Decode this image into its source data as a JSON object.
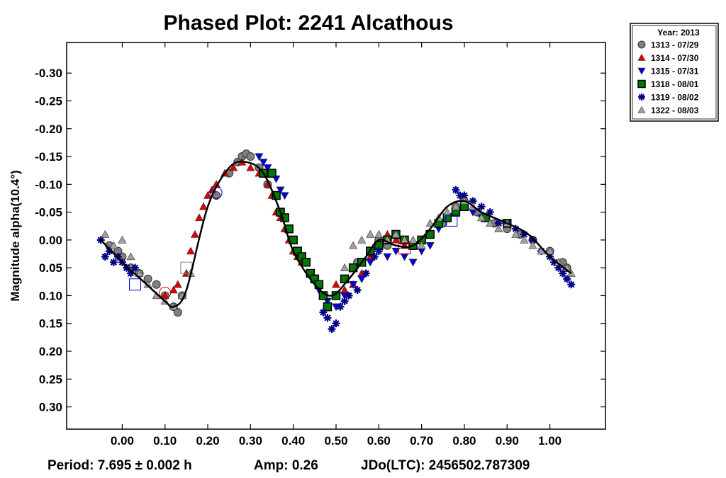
{
  "chart_data": {
    "type": "scatter",
    "title": "Phased Plot: 2241 Alcathous",
    "ylabel": "Magnitude alpha(10.4°)",
    "xlabel": "",
    "xlim": [
      -0.13,
      1.13
    ],
    "ylim": [
      0.34,
      -0.355
    ],
    "y_inverted": true,
    "x_ticks": [
      "0.00",
      "0.10",
      "0.20",
      "0.30",
      "0.40",
      "0.50",
      "0.60",
      "0.70",
      "0.80",
      "0.90",
      "1.00"
    ],
    "y_ticks": [
      "-0.30",
      "-0.25",
      "-0.20",
      "-0.15",
      "-0.10",
      "-0.05",
      "0.00",
      "0.05",
      "0.10",
      "0.15",
      "0.20",
      "0.25",
      "0.30"
    ],
    "legend_title": "Year: 2013",
    "legend_position": "outside-top-right",
    "footer": {
      "period": "Period: 7.695 ± 0.002 h",
      "amp": "Amp: 0.26",
      "jdo": "JDo(LTC): 2456502.787309"
    },
    "fit_curve": {
      "x": [
        -0.05,
        0.0,
        0.05,
        0.1,
        0.12,
        0.15,
        0.2,
        0.25,
        0.29,
        0.33,
        0.37,
        0.4,
        0.45,
        0.49,
        0.53,
        0.57,
        0.6,
        0.64,
        0.68,
        0.72,
        0.76,
        0.8,
        0.84,
        0.9,
        0.95,
        1.0,
        1.05
      ],
      "y": [
        0.0,
        0.04,
        0.075,
        0.11,
        0.12,
        0.09,
        -0.06,
        -0.13,
        -0.14,
        -0.12,
        -0.05,
        0.02,
        0.08,
        0.1,
        0.07,
        0.03,
        0.0,
        0.01,
        0.01,
        -0.02,
        -0.06,
        -0.07,
        -0.05,
        -0.03,
        -0.01,
        0.03,
        0.06
      ]
    },
    "series": [
      {
        "name": "1313 - 07/29",
        "marker": "circle",
        "color": "#808080",
        "x": [
          -0.03,
          -0.01,
          0.0,
          0.02,
          0.04,
          0.06,
          0.08,
          0.1,
          0.12,
          0.13,
          0.14,
          0.22,
          0.25,
          0.27,
          0.28,
          0.29,
          0.3,
          0.32,
          0.34,
          0.36,
          0.55,
          0.58,
          0.6,
          0.62,
          0.65,
          0.75,
          0.78,
          0.8,
          0.83,
          0.87,
          0.9,
          0.93,
          0.96,
          1.0,
          1.03,
          1.04
        ],
        "y": [
          0.01,
          0.02,
          0.03,
          0.05,
          0.06,
          0.07,
          0.08,
          0.1,
          0.12,
          0.13,
          0.1,
          -0.08,
          -0.12,
          -0.14,
          -0.15,
          -0.155,
          -0.15,
          -0.13,
          -0.1,
          -0.08,
          0.04,
          0.02,
          0.0,
          0.01,
          0.0,
          -0.03,
          -0.06,
          -0.07,
          -0.05,
          -0.03,
          -0.02,
          -0.01,
          0.0,
          0.02,
          0.04,
          0.05
        ]
      },
      {
        "name": "1314 - 07/30",
        "marker": "triangle-up",
        "color": "#dd0000",
        "x": [
          0.1,
          0.12,
          0.13,
          0.14,
          0.15,
          0.16,
          0.17,
          0.18,
          0.19,
          0.2,
          0.21,
          0.22,
          0.24,
          0.26,
          0.28,
          0.3,
          0.32,
          0.34,
          0.35,
          0.36,
          0.37,
          0.38,
          0.39,
          0.4,
          0.41,
          0.42,
          0.5,
          0.52,
          0.54,
          0.56,
          0.58,
          0.6,
          0.62,
          0.64,
          0.66
        ],
        "y": [
          0.1,
          0.09,
          0.08,
          0.1,
          0.06,
          0.02,
          -0.01,
          -0.04,
          -0.06,
          -0.08,
          -0.09,
          -0.1,
          -0.12,
          -0.13,
          -0.14,
          -0.13,
          -0.12,
          -0.1,
          -0.08,
          -0.05,
          -0.04,
          -0.02,
          0.0,
          0.02,
          0.03,
          0.04,
          0.08,
          0.09,
          0.08,
          0.06,
          0.03,
          0.01,
          -0.01,
          0.0,
          0.01
        ]
      },
      {
        "name": "1315 - 07/31",
        "marker": "triangle-down",
        "color": "#0000dd",
        "x": [
          0.32,
          0.33,
          0.34,
          0.35,
          0.36,
          0.37,
          0.38,
          0.44,
          0.46,
          0.48,
          0.5,
          0.52,
          0.54,
          0.56,
          0.58,
          0.62,
          0.64,
          0.66,
          0.68,
          0.7,
          0.72,
          0.74,
          0.76,
          0.78,
          0.8,
          0.82,
          0.84
        ],
        "y": [
          -0.15,
          -0.14,
          -0.13,
          -0.12,
          -0.11,
          -0.09,
          -0.08,
          0.06,
          0.09,
          0.11,
          0.12,
          0.1,
          0.08,
          0.07,
          0.04,
          0.03,
          0.02,
          0.03,
          0.04,
          0.02,
          0.01,
          -0.02,
          -0.04,
          -0.05,
          -0.06,
          -0.05,
          -0.04
        ]
      },
      {
        "name": "1318 - 08/01",
        "marker": "square",
        "color": "#007700",
        "x": [
          0.33,
          0.35,
          0.36,
          0.37,
          0.38,
          0.39,
          0.4,
          0.41,
          0.42,
          0.43,
          0.44,
          0.45,
          0.46,
          0.47,
          0.48,
          0.5,
          0.52,
          0.54,
          0.56,
          0.58,
          0.6,
          0.62,
          0.64,
          0.66,
          0.68,
          0.7,
          0.72,
          0.74,
          0.76,
          0.78,
          0.8,
          0.85,
          0.9
        ],
        "y": [
          -0.12,
          -0.12,
          -0.08,
          -0.05,
          -0.04,
          -0.02,
          0.0,
          0.02,
          0.03,
          0.04,
          0.06,
          0.07,
          0.08,
          0.1,
          0.12,
          0.1,
          0.07,
          0.05,
          0.04,
          0.02,
          0.01,
          0.0,
          -0.01,
          0.0,
          0.01,
          0.0,
          -0.01,
          -0.03,
          -0.04,
          -0.05,
          -0.06,
          -0.04,
          -0.03
        ]
      },
      {
        "name": "1319 - 08/02",
        "marker": "asterisk",
        "color": "#000088",
        "x": [
          -0.05,
          -0.04,
          -0.03,
          -0.02,
          -0.01,
          0.0,
          0.01,
          0.02,
          0.03,
          0.47,
          0.48,
          0.49,
          0.5,
          0.51,
          0.52,
          0.53,
          0.55,
          0.57,
          0.59,
          0.6,
          0.78,
          0.79,
          0.8,
          0.82,
          0.84,
          0.86,
          0.88,
          0.9,
          0.92,
          0.94,
          0.96,
          0.98,
          1.0,
          1.01,
          1.02,
          1.03,
          1.04,
          1.05
        ],
        "y": [
          0.0,
          0.03,
          0.02,
          0.04,
          0.03,
          0.04,
          0.05,
          0.06,
          0.05,
          0.13,
          0.14,
          0.16,
          0.15,
          0.12,
          0.11,
          0.1,
          0.09,
          0.06,
          0.03,
          0.02,
          -0.09,
          -0.08,
          -0.08,
          -0.07,
          -0.06,
          -0.05,
          -0.03,
          -0.03,
          -0.02,
          -0.01,
          0.0,
          0.02,
          0.03,
          0.04,
          0.05,
          0.06,
          0.07,
          0.08
        ]
      },
      {
        "name": "1322 - 08/03",
        "marker": "triangle-up",
        "color": "#a0a0a0",
        "x": [
          -0.04,
          -0.02,
          0.0,
          0.02,
          0.04,
          0.06,
          0.08,
          0.1,
          0.12,
          0.14,
          0.16,
          0.52,
          0.54,
          0.56,
          0.58,
          0.6,
          0.62,
          0.64,
          0.66,
          0.68,
          0.7,
          0.72,
          0.74,
          0.76,
          0.78,
          0.8,
          0.82,
          0.84,
          0.86,
          0.88,
          0.9,
          0.92,
          0.94,
          0.96,
          0.98,
          1.0,
          1.02,
          1.04,
          1.05
        ],
        "y": [
          -0.01,
          0.01,
          0.0,
          0.03,
          0.06,
          0.08,
          0.1,
          0.11,
          0.12,
          0.1,
          0.06,
          0.05,
          0.01,
          0.0,
          -0.01,
          -0.01,
          0.0,
          -0.01,
          0.0,
          0.0,
          0.01,
          -0.03,
          -0.04,
          -0.05,
          -0.06,
          -0.07,
          -0.06,
          -0.04,
          -0.03,
          -0.02,
          -0.03,
          -0.01,
          0.0,
          0.01,
          0.02,
          0.02,
          0.04,
          0.05,
          0.06
        ]
      }
    ],
    "highlight_points": [
      {
        "x": 0.03,
        "y": 0.08,
        "marker": "square",
        "color": "#0000dd"
      },
      {
        "x": 0.1,
        "y": 0.095,
        "marker": "circle",
        "color": "#dd0000"
      },
      {
        "x": 0.15,
        "y": 0.05,
        "marker": "square",
        "color": "#808080"
      },
      {
        "x": 0.22,
        "y": -0.085,
        "marker": "circle",
        "color": "#0000dd"
      },
      {
        "x": 0.66,
        "y": 0.015,
        "marker": "square",
        "color": "#dd0000"
      },
      {
        "x": 0.77,
        "y": -0.035,
        "marker": "square",
        "color": "#0000dd"
      }
    ]
  }
}
